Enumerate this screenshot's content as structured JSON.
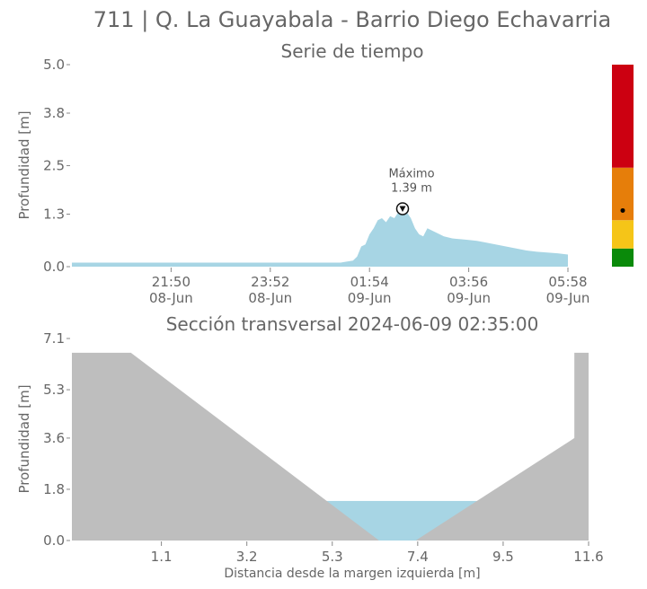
{
  "station_title": "711 | Q. La Guayabala - Barrio Diego Echavarria",
  "colors": {
    "water": "#a7d5e4",
    "terrain": "#bebebe",
    "text": "#666666",
    "alert_red": "#cc0011",
    "alert_orange": "#e67e0a",
    "alert_yellow": "#f5c518",
    "alert_green": "#0a8a0a"
  },
  "chart_data": [
    {
      "type": "area",
      "title": "Serie de tiempo",
      "ylabel": "Profundidad [m]",
      "xlabel": "",
      "ylim": [
        0,
        5.0
      ],
      "xlim": [
        0,
        25
      ],
      "grid": false,
      "yticks": [
        0.0,
        1.3,
        2.5,
        3.8,
        5.0
      ],
      "ytick_labels": [
        "0.0",
        "1.3",
        "2.5",
        "3.8",
        "5.0"
      ],
      "xticks": [
        {
          "x": 4.8,
          "time": "21:50",
          "date": "08-Jun"
        },
        {
          "x": 9.6,
          "time": "23:52",
          "date": "08-Jun"
        },
        {
          "x": 14.4,
          "time": "01:54",
          "date": "09-Jun"
        },
        {
          "x": 19.2,
          "time": "03:56",
          "date": "09-Jun"
        },
        {
          "x": 24.0,
          "time": "05:58",
          "date": "09-Jun"
        }
      ],
      "series": [
        {
          "x": [
            0,
            2,
            4,
            6,
            8,
            10,
            12,
            13,
            13.6,
            13.8,
            14.0,
            14.2,
            14.4,
            14.6,
            14.8,
            15.0,
            15.2,
            15.4,
            15.6,
            15.8,
            16.0,
            16.2,
            16.4,
            16.6,
            16.8,
            17.0,
            17.2,
            17.4,
            17.6,
            17.8,
            18.0,
            18.4,
            18.8,
            19.2,
            19.6,
            20.0,
            20.5,
            21,
            21.5,
            22,
            22.5,
            23,
            23.5,
            24.0
          ],
          "values": [
            0.1,
            0.1,
            0.1,
            0.1,
            0.1,
            0.1,
            0.1,
            0.1,
            0.15,
            0.25,
            0.5,
            0.55,
            0.8,
            0.95,
            1.15,
            1.2,
            1.1,
            1.25,
            1.2,
            1.35,
            1.39,
            1.35,
            1.2,
            0.95,
            0.8,
            0.75,
            0.95,
            0.9,
            0.85,
            0.8,
            0.75,
            0.7,
            0.68,
            0.66,
            0.64,
            0.6,
            0.55,
            0.5,
            0.45,
            0.4,
            0.37,
            0.35,
            0.33,
            0.3
          ]
        }
      ],
      "annotation": {
        "label": "Máximo",
        "value_label": "1.39 m",
        "x": 16.0,
        "y": 1.39
      },
      "alert_levels": {
        "bands": [
          {
            "from": 0,
            "to": 0.45,
            "color": "#0a8a0a"
          },
          {
            "from": 0.45,
            "to": 1.15,
            "color": "#f5c518"
          },
          {
            "from": 1.15,
            "to": 2.45,
            "color": "#e67e0a"
          },
          {
            "from": 2.45,
            "to": 5.0,
            "color": "#cc0011"
          }
        ],
        "current_level": 1.39
      }
    },
    {
      "type": "area",
      "title": "Sección transversal 2024-06-09 02:35:00",
      "ylabel": "Profundidad [m]",
      "xlabel": "Distancia desde la margen izquierda [m]",
      "ylim": [
        0,
        7.1
      ],
      "xlim": [
        -1.1,
        11.6
      ],
      "grid": false,
      "yticks": [
        0.0,
        1.8,
        3.6,
        5.3,
        7.1
      ],
      "ytick_labels": [
        "0.0",
        "1.8",
        "3.6",
        "5.3",
        "7.1"
      ],
      "xticks": [
        1.1,
        3.2,
        5.3,
        7.4,
        9.5,
        11.6
      ],
      "xtick_labels": [
        "1.1",
        "3.2",
        "5.3",
        "7.4",
        "9.5",
        "11.6"
      ],
      "terrain": {
        "x": [
          -1.1,
          0.35,
          6.45,
          7.35,
          11.25,
          11.25,
          11.6
        ],
        "values": [
          6.6,
          6.6,
          0.0,
          0.0,
          3.6,
          6.6,
          6.6
        ]
      },
      "water_level": 1.39
    }
  ]
}
